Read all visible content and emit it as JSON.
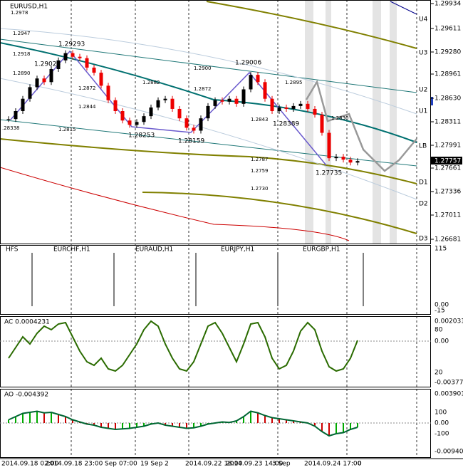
{
  "window": {
    "title": "EURUSD,H1",
    "current_price": "1.27757",
    "price_ticks": [
      "1.29934",
      "1.29611",
      "1.29280",
      "1.28961",
      "1.28630",
      "1.28311",
      "1.27991",
      "1.27661",
      "1.27336",
      "1.27011",
      "1.26681"
    ],
    "levels": [
      "U4",
      "U3",
      "U2",
      "U1",
      "LB",
      "D1",
      "D2",
      "D3"
    ],
    "annotations": [
      "1.2978",
      "1.2947",
      "1.2918",
      "1.2890",
      "1.29026",
      "1.29293",
      "1.2872",
      "1.2882",
      "1.2844",
      "1.2815",
      "1.28253",
      "1.28159",
      "1.2900",
      "1.2872",
      "1.29006",
      "1.2895",
      "1.2843",
      "1.28389",
      "1.2830",
      "1.2787",
      "1.2759",
      "1.2730",
      "1.27735",
      ".28338"
    ],
    "closes": [
      1.2834,
      1.2845,
      1.2862,
      1.2878,
      1.289,
      1.2885,
      1.2903,
      1.2915,
      1.2925,
      1.292,
      1.2918,
      1.2905,
      1.2898,
      1.288,
      1.286,
      1.2845,
      1.2832,
      1.2826,
      1.283,
      1.2838,
      1.285,
      1.286,
      1.2862,
      1.2848,
      1.2835,
      1.2822,
      1.2818,
      1.2835,
      1.2852,
      1.286,
      1.2858,
      1.2862,
      1.2855,
      1.2875,
      1.2895,
      1.2885,
      1.2862,
      1.2845,
      1.285,
      1.2848,
      1.2852,
      1.2855,
      1.2848,
      1.284,
      1.2815,
      1.278,
      1.2782,
      1.2778,
      1.2774,
      1.2776
    ],
    "time_labels": [
      "2014.09.18 02:00",
      "2014.09.18 23:00",
      "Sep 07:00",
      "19 Sep 2",
      "2014.09.22 18:00",
      "2014.09.23 14:00",
      "3 Sep",
      "2014.09.24 17:00",
      "0"
    ]
  },
  "hfs": {
    "label": "HFS",
    "symbols": [
      "EURCHF,H1",
      "EURAUD,H1",
      "EURJPY,H1",
      "EURGBP,H1"
    ],
    "ticks": [
      "115",
      "0.00",
      "-15"
    ]
  },
  "ac": {
    "label": "AC 0.0004231",
    "ticks": [
      "0.002031",
      "80",
      "0.00",
      "20",
      "-0.003779"
    ],
    "stoch": [
      40,
      55,
      70,
      60,
      75,
      85,
      80,
      88,
      90,
      70,
      50,
      35,
      30,
      40,
      25,
      22,
      30,
      45,
      60,
      80,
      92,
      85,
      60,
      40,
      25,
      22,
      35,
      60,
      85,
      90,
      75,
      55,
      35,
      60,
      88,
      90,
      70,
      40,
      25,
      30,
      50,
      78,
      90,
      80,
      50,
      28,
      22,
      25,
      40,
      65
    ]
  },
  "ao": {
    "label": "AO -0.004392",
    "ticks": [
      "0.003901",
      "100",
      "0.00",
      "-100",
      "-0.009402"
    ],
    "values": [
      30,
      60,
      90,
      100,
      110,
      95,
      100,
      80,
      60,
      30,
      10,
      -10,
      -20,
      -40,
      -50,
      -60,
      -55,
      -50,
      -40,
      -30,
      -10,
      0,
      -20,
      -30,
      -40,
      -50,
      -45,
      -30,
      -10,
      0,
      10,
      5,
      20,
      60,
      110,
      95,
      70,
      50,
      40,
      30,
      20,
      10,
      0,
      -30,
      -80,
      -120,
      -100,
      -90,
      -60,
      -40
    ]
  }
}
